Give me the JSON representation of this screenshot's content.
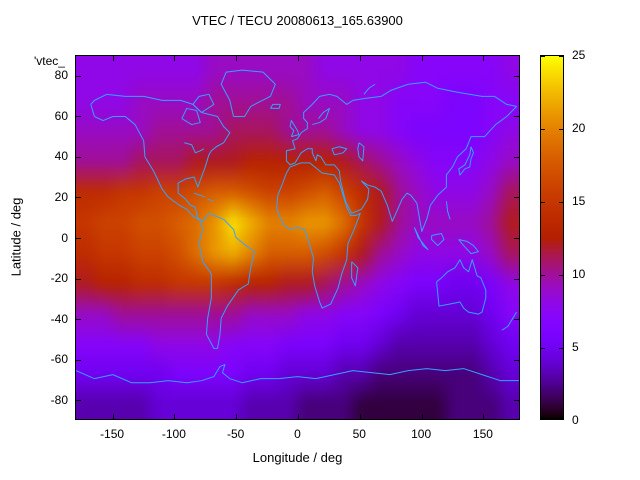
{
  "title": "VTEC / TECU 20080613_165.63900",
  "key_label": "'vtec_",
  "xlabel": "Longitude / deg",
  "ylabel": "Latitude / deg",
  "colors": {
    "background": "#ffffff",
    "coastline": "#35a2ff",
    "border": "#000000",
    "text": "#000000"
  },
  "chart_data": {
    "type": "heatmap",
    "title": "VTEC / TECU 20080613_165.63900",
    "xlabel": "Longitude / deg",
    "ylabel": "Latitude / deg",
    "units": "TECU",
    "xlim": [
      -180,
      180
    ],
    "ylim": [
      -90,
      90
    ],
    "zlim": [
      0,
      25
    ],
    "x_ticks": [
      -150,
      -100,
      -50,
      0,
      50,
      100,
      150
    ],
    "y_ticks": [
      -80,
      -60,
      -40,
      -20,
      0,
      20,
      40,
      60,
      80
    ],
    "colorbar_ticks": [
      0,
      5,
      10,
      15,
      20,
      25
    ],
    "palette": "gnuplot-rgbformulae-7-5-15 (black-violet-magenta-orange-yellow)",
    "grid_cols_lon": [
      -172.5,
      -157.5,
      -142.5,
      -127.5,
      -112.5,
      -97.5,
      -82.5,
      -67.5,
      -52.5,
      -37.5,
      -22.5,
      -7.5,
      7.5,
      22.5,
      37.5,
      52.5,
      67.5,
      82.5,
      97.5,
      112.5,
      127.5,
      142.5,
      157.5,
      172.5
    ],
    "grid_rows_lat": [
      82.5,
      67.5,
      52.5,
      37.5,
      22.5,
      7.5,
      -7.5,
      -22.5,
      -37.5,
      -52.5,
      -67.5,
      -82.5
    ],
    "grid": [
      [
        8,
        8,
        8,
        8,
        8,
        8,
        8,
        9,
        9,
        9,
        9,
        9,
        9,
        8,
        8,
        8,
        8,
        8,
        7,
        7,
        7,
        7,
        7,
        8
      ],
      [
        8,
        8,
        8,
        9,
        9,
        9,
        9,
        10,
        10,
        10,
        10,
        10,
        9,
        9,
        9,
        8,
        8,
        7,
        7,
        7,
        6,
        6,
        7,
        7
      ],
      [
        9,
        9,
        9,
        9,
        10,
        10,
        10,
        10,
        11,
        11,
        11,
        10,
        10,
        10,
        9,
        8,
        8,
        7,
        6,
        6,
        6,
        6,
        7,
        8
      ],
      [
        10,
        10,
        10,
        11,
        11,
        11,
        12,
        12,
        12,
        13,
        13,
        13,
        13,
        13,
        12,
        11,
        10,
        9,
        8,
        7,
        7,
        7,
        8,
        9
      ],
      [
        14,
        14,
        15,
        15,
        16,
        16,
        17,
        18,
        18,
        17,
        16,
        16,
        17,
        18,
        16,
        14,
        12,
        10,
        9,
        8,
        8,
        8,
        9,
        11
      ],
      [
        15,
        16,
        16,
        17,
        17,
        18,
        19,
        21,
        24,
        22,
        20,
        20,
        21,
        21,
        19,
        15,
        12,
        10,
        9,
        9,
        9,
        9,
        10,
        12
      ],
      [
        14,
        15,
        15,
        16,
        16,
        17,
        19,
        21,
        22,
        20,
        18,
        18,
        18,
        17,
        15,
        12,
        10,
        9,
        8,
        8,
        8,
        8,
        9,
        11
      ],
      [
        12,
        13,
        13,
        14,
        14,
        15,
        15,
        15,
        14,
        13,
        13,
        12,
        12,
        11,
        10,
        9,
        8,
        7,
        6,
        6,
        5,
        5,
        6,
        8
      ],
      [
        9,
        9,
        10,
        10,
        10,
        10,
        10,
        10,
        10,
        9,
        9,
        9,
        8,
        8,
        7,
        7,
        6,
        5,
        4,
        4,
        4,
        4,
        5,
        7
      ],
      [
        7,
        7,
        7,
        7,
        8,
        8,
        8,
        8,
        7,
        7,
        7,
        6,
        6,
        6,
        5,
        5,
        4,
        3,
        3,
        3,
        3,
        3,
        4,
        5
      ],
      [
        5,
        5,
        5,
        5,
        5,
        6,
        6,
        6,
        6,
        5,
        5,
        4,
        4,
        4,
        3,
        3,
        2,
        2,
        2,
        2,
        2,
        2,
        3,
        4
      ],
      [
        3,
        3,
        3,
        3,
        4,
        4,
        4,
        4,
        4,
        3,
        3,
        3,
        2,
        2,
        2,
        1,
        1,
        1,
        1,
        1,
        2,
        2,
        2,
        3
      ]
    ]
  },
  "coastlines": [
    [
      [
        -168,
        66
      ],
      [
        -165,
        60
      ],
      [
        -158,
        58
      ],
      [
        -150,
        60
      ],
      [
        -140,
        60
      ],
      [
        -132,
        56
      ],
      [
        -125,
        48
      ],
      [
        -124,
        40
      ],
      [
        -117,
        33
      ],
      [
        -110,
        24
      ],
      [
        -105,
        20
      ],
      [
        -96,
        16
      ],
      [
        -90,
        14
      ],
      [
        -84,
        10
      ],
      [
        -79,
        9
      ],
      [
        -77,
        4
      ],
      [
        -80,
        -3
      ],
      [
        -77,
        -12
      ],
      [
        -70,
        -18
      ],
      [
        -70,
        -30
      ],
      [
        -73,
        -40
      ],
      [
        -74,
        -48
      ],
      [
        -68,
        -55
      ],
      [
        -65,
        -55
      ],
      [
        -63,
        -48
      ],
      [
        -62,
        -40
      ],
      [
        -57,
        -34
      ],
      [
        -48,
        -26
      ],
      [
        -40,
        -23
      ],
      [
        -38,
        -15
      ],
      [
        -35,
        -7
      ],
      [
        -44,
        -3
      ],
      [
        -50,
        0
      ],
      [
        -52,
        4
      ],
      [
        -60,
        9
      ],
      [
        -68,
        11
      ],
      [
        -72,
        12
      ],
      [
        -77,
        8
      ],
      [
        -81,
        9
      ],
      [
        -83,
        15
      ],
      [
        -87,
        16
      ],
      [
        -91,
        19
      ],
      [
        -97,
        22
      ],
      [
        -97,
        27
      ],
      [
        -91,
        29
      ],
      [
        -84,
        30
      ],
      [
        -81,
        25
      ],
      [
        -75,
        35
      ],
      [
        -72,
        41
      ],
      [
        -70,
        43
      ],
      [
        -66,
        45
      ],
      [
        -60,
        47
      ],
      [
        -55,
        52
      ],
      [
        -60,
        55
      ],
      [
        -65,
        60
      ],
      [
        -78,
        62
      ],
      [
        -85,
        66
      ],
      [
        -95,
        68
      ],
      [
        -110,
        68
      ],
      [
        -125,
        70
      ],
      [
        -140,
        70
      ],
      [
        -155,
        71
      ],
      [
        -165,
        68
      ],
      [
        -168,
        66
      ]
    ],
    [
      [
        -52,
        60
      ],
      [
        -43,
        60
      ],
      [
        -38,
        65
      ],
      [
        -22,
        70
      ],
      [
        -18,
        76
      ],
      [
        -28,
        82
      ],
      [
        -45,
        83
      ],
      [
        -58,
        82
      ],
      [
        -62,
        76
      ],
      [
        -55,
        68
      ],
      [
        -52,
        60
      ]
    ],
    [
      [
        -6,
        35
      ],
      [
        3,
        37
      ],
      [
        10,
        37
      ],
      [
        20,
        32
      ],
      [
        30,
        31
      ],
      [
        34,
        27
      ],
      [
        37,
        21
      ],
      [
        40,
        15
      ],
      [
        43,
        11
      ],
      [
        48,
        11
      ],
      [
        51,
        12
      ],
      [
        46,
        4
      ],
      [
        41,
        -3
      ],
      [
        40,
        -11
      ],
      [
        36,
        -18
      ],
      [
        33,
        -25
      ],
      [
        27,
        -33
      ],
      [
        20,
        -35
      ],
      [
        18,
        -32
      ],
      [
        14,
        -24
      ],
      [
        12,
        -17
      ],
      [
        13,
        -10
      ],
      [
        9,
        -2
      ],
      [
        6,
        4
      ],
      [
        0,
        5
      ],
      [
        -6,
        4
      ],
      [
        -11,
        6
      ],
      [
        -15,
        11
      ],
      [
        -17,
        15
      ],
      [
        -16,
        21
      ],
      [
        -12,
        27
      ],
      [
        -9,
        32
      ],
      [
        -6,
        35
      ]
    ],
    [
      [
        -6,
        36
      ],
      [
        -9,
        38
      ],
      [
        -9,
        43
      ],
      [
        -2,
        44
      ],
      [
        -4,
        48
      ],
      [
        0,
        49
      ],
      [
        3,
        52
      ],
      [
        8,
        54
      ],
      [
        8,
        57
      ],
      [
        5,
        59
      ],
      [
        5,
        62
      ],
      [
        12,
        66
      ],
      [
        18,
        70
      ],
      [
        26,
        71
      ],
      [
        32,
        70
      ],
      [
        40,
        66
      ],
      [
        45,
        68
      ],
      [
        55,
        69
      ],
      [
        68,
        70
      ],
      [
        76,
        73
      ],
      [
        90,
        76
      ],
      [
        104,
        77
      ],
      [
        114,
        74
      ],
      [
        130,
        72
      ],
      [
        150,
        70
      ],
      [
        160,
        70
      ],
      [
        170,
        66
      ],
      [
        178,
        65
      ],
      [
        170,
        60
      ],
      [
        161,
        56
      ],
      [
        152,
        50
      ],
      [
        141,
        50
      ],
      [
        137,
        44
      ],
      [
        130,
        40
      ],
      [
        126,
        35
      ],
      [
        121,
        31
      ],
      [
        121,
        25
      ],
      [
        114,
        21
      ],
      [
        108,
        16
      ],
      [
        105,
        9
      ],
      [
        101,
        3
      ],
      [
        99,
        10
      ],
      [
        97,
        17
      ],
      [
        92,
        21
      ],
      [
        89,
        22
      ],
      [
        85,
        19
      ],
      [
        80,
        12
      ],
      [
        77,
        8
      ],
      [
        73,
        16
      ],
      [
        68,
        23
      ],
      [
        63,
        25
      ],
      [
        57,
        26
      ],
      [
        52,
        28
      ],
      [
        58,
        24
      ],
      [
        57,
        19
      ],
      [
        52,
        14
      ],
      [
        44,
        12
      ],
      [
        39,
        18
      ],
      [
        35,
        28
      ],
      [
        34,
        33
      ],
      [
        30,
        36
      ],
      [
        27,
        36
      ],
      [
        23,
        36
      ],
      [
        19,
        40
      ],
      [
        16,
        41
      ],
      [
        15,
        38
      ],
      [
        12,
        42
      ],
      [
        12,
        44
      ],
      [
        8,
        44
      ],
      [
        3,
        42
      ],
      [
        0,
        39
      ],
      [
        -2,
        37
      ],
      [
        -6,
        36
      ]
    ],
    [
      [
        -180,
        -66
      ],
      [
        -165,
        -70
      ],
      [
        -150,
        -68
      ],
      [
        -135,
        -72
      ],
      [
        -120,
        -72
      ],
      [
        -105,
        -71
      ],
      [
        -90,
        -72
      ],
      [
        -78,
        -71
      ],
      [
        -68,
        -69
      ],
      [
        -63,
        -64
      ],
      [
        -59,
        -63
      ],
      [
        -61,
        -67
      ],
      [
        -55,
        -70
      ],
      [
        -45,
        -72
      ],
      [
        -30,
        -70
      ],
      [
        -15,
        -70
      ],
      [
        0,
        -69
      ],
      [
        15,
        -70
      ],
      [
        30,
        -68
      ],
      [
        45,
        -66
      ],
      [
        60,
        -67
      ],
      [
        75,
        -68
      ],
      [
        90,
        -66
      ],
      [
        105,
        -65
      ],
      [
        120,
        -66
      ],
      [
        135,
        -65
      ],
      [
        150,
        -68
      ],
      [
        165,
        -71
      ],
      [
        180,
        -71
      ]
    ],
    [
      [
        113,
        -22
      ],
      [
        115,
        -34
      ],
      [
        124,
        -33
      ],
      [
        132,
        -32
      ],
      [
        135,
        -35
      ],
      [
        139,
        -37
      ],
      [
        147,
        -38
      ],
      [
        150,
        -37
      ],
      [
        153,
        -30
      ],
      [
        153,
        -26
      ],
      [
        149,
        -20
      ],
      [
        146,
        -19
      ],
      [
        142,
        -11
      ],
      [
        139,
        -17
      ],
      [
        135,
        -15
      ],
      [
        132,
        -11
      ],
      [
        128,
        -15
      ],
      [
        122,
        -17
      ],
      [
        117,
        -20
      ],
      [
        113,
        -22
      ]
    ],
    [
      [
        -5,
        50
      ],
      [
        1,
        51
      ],
      [
        0,
        53
      ],
      [
        -3,
        56
      ],
      [
        -5,
        58
      ],
      [
        -6,
        55
      ],
      [
        -3,
        53
      ],
      [
        -5,
        50
      ]
    ],
    [
      [
        141,
        45
      ],
      [
        143,
        42
      ],
      [
        141,
        39
      ],
      [
        140,
        35
      ],
      [
        136,
        34
      ],
      [
        132,
        31
      ],
      [
        131,
        34
      ],
      [
        136,
        36
      ],
      [
        140,
        41
      ],
      [
        141,
        45
      ]
    ],
    [
      [
        44,
        -12
      ],
      [
        49,
        -15
      ],
      [
        47,
        -24
      ],
      [
        44,
        -20
      ],
      [
        44,
        -12
      ]
    ],
    [
      [
        95,
        5
      ],
      [
        102,
        -4
      ],
      [
        106,
        -6
      ],
      [
        98,
        0
      ],
      [
        95,
        5
      ]
    ],
    [
      [
        109,
        1
      ],
      [
        117,
        2
      ],
      [
        119,
        -1
      ],
      [
        114,
        -4
      ],
      [
        109,
        -1
      ],
      [
        109,
        1
      ]
    ],
    [
      [
        131,
        -1
      ],
      [
        138,
        -2
      ],
      [
        143,
        -4
      ],
      [
        147,
        -7
      ],
      [
        141,
        -8
      ],
      [
        135,
        -4
      ],
      [
        131,
        -1
      ]
    ],
    [
      [
        -22,
        64
      ],
      [
        -15,
        64
      ],
      [
        -14,
        66
      ],
      [
        -20,
        66
      ],
      [
        -22,
        64
      ]
    ],
    [
      [
        -78,
        62
      ],
      [
        -68,
        66
      ],
      [
        -72,
        71
      ],
      [
        -80,
        70
      ],
      [
        -85,
        66
      ],
      [
        -78,
        62
      ]
    ],
    [
      [
        -94,
        59
      ],
      [
        -86,
        56
      ],
      [
        -79,
        57
      ],
      [
        -82,
        63
      ],
      [
        -90,
        64
      ],
      [
        -94,
        59
      ]
    ],
    [
      [
        -92,
        47
      ],
      [
        -86,
        46
      ],
      [
        -83,
        42
      ],
      [
        -79,
        43
      ],
      [
        -76,
        44
      ]
    ],
    [
      [
        28,
        44
      ],
      [
        34,
        45
      ],
      [
        40,
        44
      ],
      [
        37,
        42
      ],
      [
        30,
        41
      ],
      [
        28,
        44
      ]
    ],
    [
      [
        50,
        47
      ],
      [
        54,
        45
      ],
      [
        53,
        38
      ],
      [
        50,
        40
      ],
      [
        49,
        44
      ],
      [
        50,
        47
      ]
    ],
    [
      [
        166,
        -46
      ],
      [
        171,
        -44
      ],
      [
        174,
        -41
      ],
      [
        178,
        -37
      ]
    ],
    [
      [
        -84,
        22
      ],
      [
        -75,
        20
      ]
    ],
    [
      [
        -73,
        19
      ],
      [
        -68,
        18
      ]
    ],
    [
      [
        12,
        56
      ],
      [
        18,
        57
      ],
      [
        23,
        59
      ],
      [
        26,
        64
      ],
      [
        21,
        62
      ],
      [
        17,
        59
      ]
    ],
    [
      [
        121,
        18
      ],
      [
        122,
        13
      ],
      [
        124,
        9
      ]
    ],
    [
      [
        54,
        71
      ],
      [
        58,
        74
      ],
      [
        63,
        76
      ]
    ]
  ]
}
